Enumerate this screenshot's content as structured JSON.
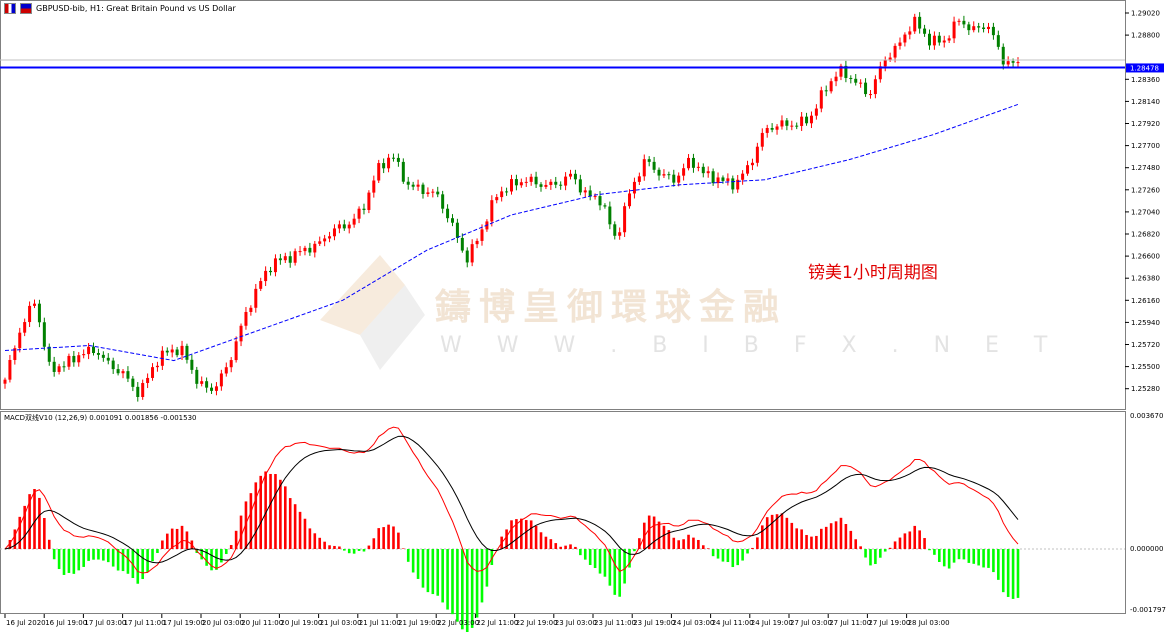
{
  "header": {
    "title": "GBPUSD-bib, H1:  Great Britain Pound vs US Dollar"
  },
  "annotation": "镑美1小时周期图",
  "watermark": {
    "name": "鑄博皇御環球金融",
    "url": "W W W . B I B F X . N E T"
  },
  "colors": {
    "up": "#ff0000",
    "down": "#008000",
    "ma": "#0000ff",
    "price_line": "#0000ff",
    "macd_line": "#ff0000",
    "signal_line": "#000000",
    "hist_pos": "#ff0000",
    "hist_neg": "#00ff00"
  },
  "chart_data": [
    {
      "type": "candlestick",
      "symbol": "GBPUSD-bib",
      "timeframe": "H1",
      "ylim": [
        1.2518,
        1.2918
      ],
      "y_ticks": [
        "1.29020",
        "1.28800",
        "1.28360",
        "1.28140",
        "1.27920",
        "1.27700",
        "1.27480",
        "1.27260",
        "1.27040",
        "1.26820",
        "1.26600",
        "1.26380",
        "1.26160",
        "1.25940",
        "1.25720",
        "1.25500",
        "1.25280"
      ],
      "current_price": "1.28478",
      "x_ticks": [
        "16 Jul 2020",
        "16 Jul 19:00",
        "17 Jul 03:00",
        "17 Jul 11:00",
        "17 Jul 19:00",
        "20 Jul 03:00",
        "20 Jul 11:00",
        "20 Jul 19:00",
        "21 Jul 03:00",
        "21 Jul 11:00",
        "21 Jul 19:00",
        "22 Jul 03:00",
        "22 Jul 11:00",
        "22 Jul 19:00",
        "23 Jul 03:00",
        "23 Jul 11:00",
        "23 Jul 19:00",
        "24 Jul 03:00",
        "24 Jul 11:00",
        "24 Jul 19:00",
        "27 Jul 03:00",
        "27 Jul 11:00",
        "27 Jul 19:00",
        "28 Jul 03:00"
      ],
      "closes": [
        1.2537,
        1.2586,
        1.2616,
        1.2547,
        1.2552,
        1.2562,
        1.2567,
        1.2552,
        1.2542,
        1.2522,
        1.2552,
        1.2567,
        1.2565,
        1.2532,
        1.2527,
        1.2552,
        1.2596,
        1.2631,
        1.2654,
        1.2658,
        1.2666,
        1.2671,
        1.2686,
        1.2691,
        1.2706,
        1.2746,
        1.2761,
        1.2731,
        1.2726,
        1.2721,
        1.2691,
        1.2656,
        1.2686,
        1.2721,
        1.2731,
        1.2736,
        1.2731,
        1.2731,
        1.2741,
        1.2721,
        1.2716,
        1.2676,
        1.2726,
        1.2756,
        1.2741,
        1.2736,
        1.2756,
        1.2741,
        1.2736,
        1.2731,
        1.2751,
        1.2786,
        1.2791,
        1.2791,
        1.2796,
        1.2825,
        1.2845,
        1.2835,
        1.282,
        1.2855,
        1.287,
        1.2895,
        1.2875,
        1.2873,
        1.2895,
        1.2885,
        1.289,
        1.2855,
        1.285
      ],
      "moving_average": {
        "style": "dashed",
        "values": [
          1.2566,
          1.2571,
          1.2556,
          1.2586,
          1.2616,
          1.2666,
          1.2701,
          1.2721,
          1.2731,
          1.2736,
          1.2756,
          1.2781,
          1.2811
        ]
      }
    },
    {
      "type": "macd",
      "label": "MACD双线V10 (12,26,9) 0.001091 0.001856 -0.001530",
      "params": [
        12,
        26,
        9
      ],
      "macd": 0.001091,
      "signal": 0.001856,
      "histogram": -0.00153,
      "y_ticks": [
        "0.003670",
        "0.000000",
        "-0.001797"
      ],
      "ylim": [
        -0.001797,
        0.00367
      ]
    }
  ]
}
